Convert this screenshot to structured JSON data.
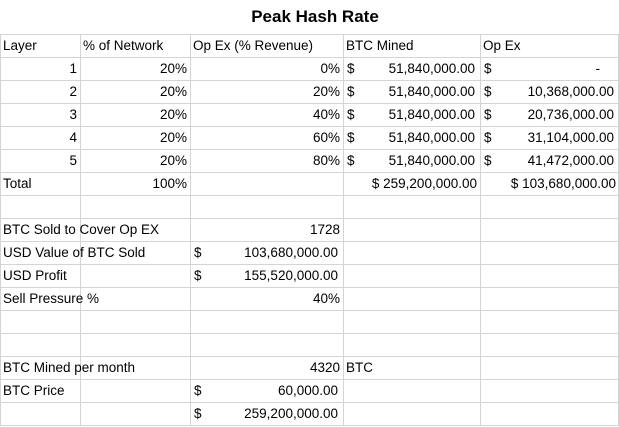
{
  "title": "Peak Hash Rate",
  "headers": [
    "Layer",
    "% of Network",
    "Op Ex (% Revenue)",
    "BTC Mined",
    "Op Ex"
  ],
  "layers": [
    {
      "layer": "1",
      "network": "20%",
      "opex_pct": "0%",
      "btc_sym": "$",
      "btc": "51,840,000.00",
      "opex_sym": "$",
      "opex": "-"
    },
    {
      "layer": "2",
      "network": "20%",
      "opex_pct": "20%",
      "btc_sym": "$",
      "btc": "51,840,000.00",
      "opex_sym": "$",
      "opex": "10,368,000.00"
    },
    {
      "layer": "3",
      "network": "20%",
      "opex_pct": "40%",
      "btc_sym": "$",
      "btc": "51,840,000.00",
      "opex_sym": "$",
      "opex": "20,736,000.00"
    },
    {
      "layer": "4",
      "network": "20%",
      "opex_pct": "60%",
      "btc_sym": "$",
      "btc": "51,840,000.00",
      "opex_sym": "$",
      "opex": "31,104,000.00"
    },
    {
      "layer": "5",
      "network": "20%",
      "opex_pct": "80%",
      "btc_sym": "$",
      "btc": "51,840,000.00",
      "opex_sym": "$",
      "opex": "41,472,000.00"
    }
  ],
  "total": {
    "label": "Total",
    "network": "100%",
    "btc": "$ 259,200,000.00",
    "opex": "$ 103,680,000.00"
  },
  "summary": {
    "btc_sold_label": "BTC Sold to Cover Op EX",
    "btc_sold_value": "1728",
    "usd_value_label": "USD Value of BTC Sold",
    "usd_value_sym": "$",
    "usd_value": "103,680,000.00",
    "usd_profit_label": "USD Profit",
    "usd_profit_sym": "$",
    "usd_profit": "155,520,000.00",
    "sell_pressure_label": "Sell Pressure %",
    "sell_pressure_value": "40%"
  },
  "monthly": {
    "mined_label": "BTC Mined per month",
    "mined_value": "4320",
    "mined_unit": "BTC",
    "price_label": "BTC Price",
    "price_sym": "$",
    "price": "60,000.00",
    "value_sym": "$",
    "value": "259,200,000.00"
  }
}
